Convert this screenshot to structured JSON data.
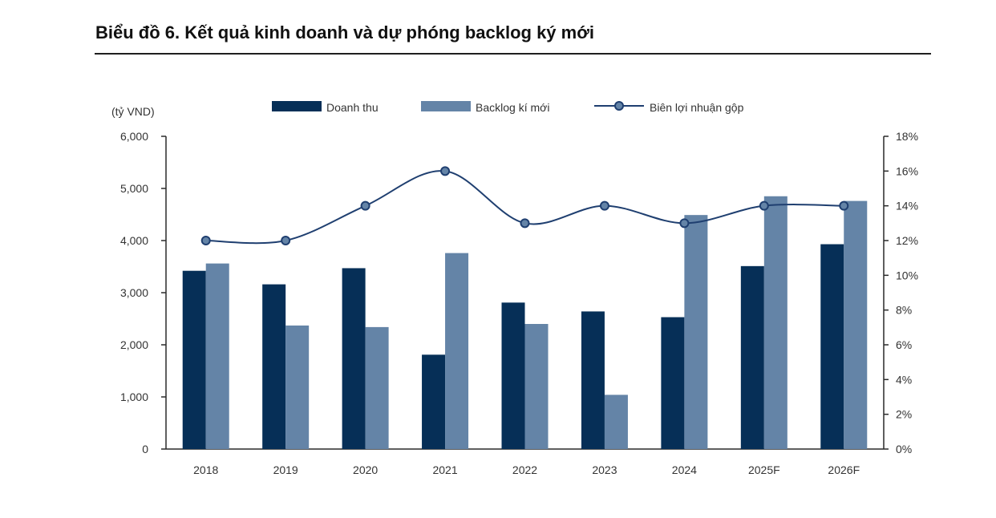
{
  "title": "Biểu đồ 6. Kết quả kinh doanh và dự phóng backlog ký mới",
  "colors": {
    "revenue": "#062f57",
    "backlog": "#6484a7",
    "margin": "#1f3f70",
    "axis": "#2a2a2a",
    "text": "#333333"
  },
  "chart_data": {
    "type": "bar",
    "categories": [
      "2018",
      "2019",
      "2020",
      "2021",
      "2022",
      "2023",
      "2024",
      "2025F",
      "2026F"
    ],
    "series": [
      {
        "name": "Doanh thu",
        "type": "bar",
        "axis": "left",
        "values": [
          3420,
          3160,
          3470,
          1810,
          2810,
          2640,
          2530,
          3510,
          3930
        ]
      },
      {
        "name": "Backlog kí mới",
        "type": "bar",
        "axis": "left",
        "values": [
          3560,
          2370,
          2340,
          3760,
          2400,
          1040,
          4490,
          4850,
          4760
        ]
      },
      {
        "name": "Biên lợi nhuận gộp",
        "type": "line",
        "axis": "right",
        "values": [
          12,
          12,
          14,
          16,
          13,
          14,
          13,
          14,
          14
        ]
      }
    ],
    "title": "",
    "xlabel": "",
    "ylabel": "(tỷ VND)",
    "ylim": [
      0,
      6000
    ],
    "y_ticks": [
      0,
      1000,
      2000,
      3000,
      4000,
      5000,
      6000
    ],
    "y_tick_labels": [
      "0",
      "1,000",
      "2,000",
      "3,000",
      "4,000",
      "5,000",
      "6,000"
    ],
    "y2lim": [
      0,
      18
    ],
    "y2_ticks": [
      0,
      2,
      4,
      6,
      8,
      10,
      12,
      14,
      16,
      18
    ],
    "y2_tick_labels": [
      "0%",
      "2%",
      "4%",
      "6%",
      "8%",
      "10%",
      "12%",
      "14%",
      "16%",
      "18%"
    ],
    "legend": {
      "position": "top",
      "labels": [
        "Doanh thu",
        "Backlog kí mới",
        "Biên lợi nhuận gộp"
      ]
    },
    "grid": false
  }
}
